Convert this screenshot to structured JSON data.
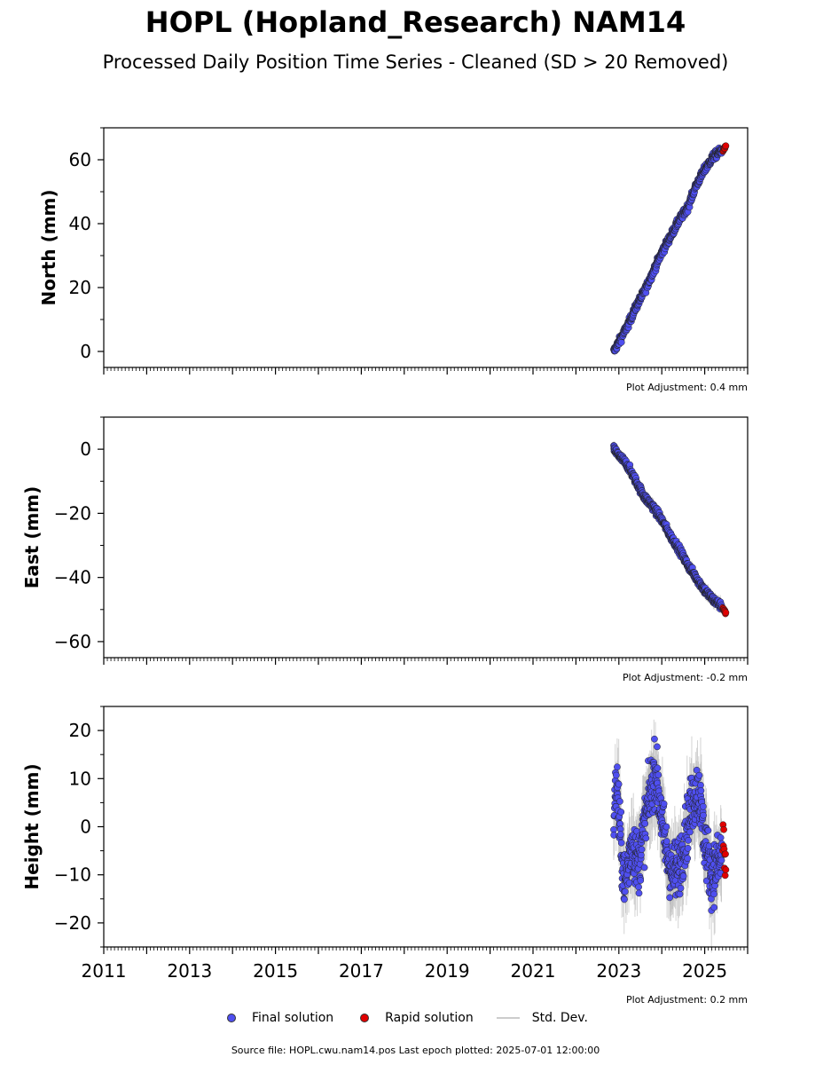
{
  "title": "HOPL (Hopland_Research) NAM14",
  "subtitle": "Processed Daily Position Time Series - Cleaned (SD > 20 Removed)",
  "footer": "Source file: HOPL.cwu.nam14.pos  Last epoch plotted: 2025-07-01 12:00:00",
  "legend": {
    "final": "Final solution",
    "rapid": "Rapid solution",
    "std": "Std. Dev."
  },
  "colors": {
    "final": "#4f4ff0",
    "rapid": "#e00000",
    "std": "#b0b0b0"
  },
  "chart_data": [
    {
      "type": "scatter",
      "ylabel": "North (mm)",
      "adjustment": "Plot Adjustment: 0.4 mm",
      "xlim": [
        2011,
        2026
      ],
      "ylim": [
        -5,
        70
      ],
      "yticks": [
        0,
        20,
        40,
        60
      ],
      "xtick_labels_visible": false,
      "series": [
        {
          "name": "Final solution",
          "x": [
            2022.88,
            2023.0,
            2023.2,
            2023.4,
            2023.6,
            2023.8,
            2024.0,
            2024.2,
            2024.4,
            2024.6,
            2024.8,
            2025.0,
            2025.2,
            2025.4
          ],
          "y": [
            0,
            3,
            8,
            14,
            19,
            25,
            31,
            36,
            41,
            45,
            52,
            57,
            61,
            63
          ]
        },
        {
          "name": "Rapid solution",
          "x": [
            2025.42,
            2025.45,
            2025.48,
            2025.5
          ],
          "y": [
            62.5,
            63.5,
            64,
            64.5
          ]
        }
      ]
    },
    {
      "type": "scatter",
      "ylabel": "East (mm)",
      "adjustment": "Plot Adjustment: -0.2 mm",
      "xlim": [
        2011,
        2026
      ],
      "ylim": [
        -65,
        10
      ],
      "yticks": [
        0,
        -20,
        -40,
        -60
      ],
      "xtick_labels_visible": false,
      "series": [
        {
          "name": "Final solution",
          "x": [
            2022.88,
            2023.0,
            2023.2,
            2023.4,
            2023.6,
            2023.8,
            2024.0,
            2024.2,
            2024.4,
            2024.6,
            2024.8,
            2025.0,
            2025.2,
            2025.4
          ],
          "y": [
            0,
            -2,
            -5,
            -10,
            -15,
            -18,
            -22,
            -27,
            -31,
            -36,
            -40,
            -44,
            -47,
            -49
          ]
        },
        {
          "name": "Rapid solution",
          "x": [
            2025.42,
            2025.45,
            2025.48,
            2025.5
          ],
          "y": [
            -49.5,
            -50,
            -51,
            -51.5
          ]
        }
      ]
    },
    {
      "type": "scatter",
      "ylabel": "Height (mm)",
      "adjustment": "Plot Adjustment: 0.2 mm",
      "xlim": [
        2011,
        2026
      ],
      "ylim": [
        -25,
        25
      ],
      "yticks": [
        20,
        10,
        0,
        -10,
        -20
      ],
      "xticks": [
        2011,
        2013,
        2015,
        2017,
        2019,
        2021,
        2023,
        2025
      ],
      "xtick_labels": [
        "2011",
        "2013",
        "2015",
        "2017",
        "2019",
        "2021",
        "2023",
        "2025"
      ],
      "xtick_labels_visible": true,
      "series": [
        {
          "name": "Final solution",
          "x": [
            2022.88,
            2022.95,
            2023.05,
            2023.15,
            2023.3,
            2023.45,
            2023.6,
            2023.75,
            2023.85,
            2023.95,
            2024.1,
            2024.25,
            2024.4,
            2024.55,
            2024.7,
            2024.85,
            2025.0,
            2025.15,
            2025.3,
            2025.4
          ],
          "y": [
            2,
            10,
            -5,
            -12,
            -3,
            -8,
            0,
            8,
            12,
            5,
            -5,
            -10,
            -8,
            -2,
            5,
            8,
            -3,
            -10,
            -8,
            -6
          ]
        },
        {
          "name": "Rapid solution",
          "x": [
            2025.42,
            2025.45,
            2025.48,
            2025.5
          ],
          "y": [
            -3,
            -6,
            -9,
            -2
          ]
        }
      ]
    }
  ]
}
